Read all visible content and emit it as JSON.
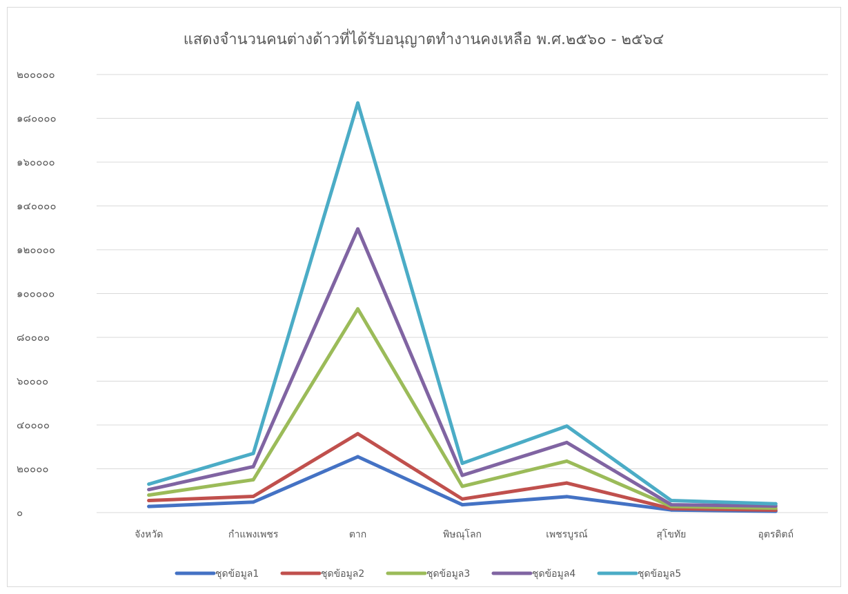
{
  "chart_data": {
    "type": "line",
    "title": "แสดงจำนวนคนต่างด้าวที่ได้รับอนุญาตทำงานคงเหลือ พ.ศ.๒๕๖๐ - ๒๕๖๔",
    "categories": [
      "จังหวัด",
      "กำแพงเพชร",
      "ตาก",
      "พิษณุโลก",
      "เพชรบูรณ์",
      "สุโขทัย",
      "อุตรดิตถ์"
    ],
    "ylim": [
      0,
      200000
    ],
    "yticks": [
      0,
      20000,
      40000,
      60000,
      80000,
      100000,
      120000,
      140000,
      160000,
      180000,
      200000
    ],
    "ytick_labels": [
      "๐",
      "๒๐๐๐๐",
      "๔๐๐๐๐",
      "๖๐๐๐๐",
      "๘๐๐๐๐",
      "๑๐๐๐๐๐",
      "๑๒๐๐๐๐",
      "๑๔๐๐๐๐",
      "๑๖๐๐๐๐",
      "๑๘๐๐๐๐",
      "๒๐๐๐๐๐"
    ],
    "grid": true,
    "legend_position": "bottom",
    "series": [
      {
        "name": "ชุดข้อมูล1",
        "color": "#4472c4",
        "values": [
          2800,
          4800,
          25500,
          3600,
          7300,
          1200,
          600
        ]
      },
      {
        "name": "ชุดข้อมูล2",
        "color": "#c0504d",
        "values": [
          5500,
          7400,
          36000,
          6200,
          13500,
          1800,
          1100
        ]
      },
      {
        "name": "ชุดข้อมูล3",
        "color": "#9bbb59",
        "values": [
          8000,
          15000,
          93000,
          12000,
          23500,
          2800,
          2000
        ]
      },
      {
        "name": "ชุดข้อมูล4",
        "color": "#8064a2",
        "values": [
          10500,
          21000,
          129500,
          17000,
          32000,
          3600,
          3000
        ]
      },
      {
        "name": "ชุดข้อมูล5",
        "color": "#4bacc6",
        "values": [
          13000,
          27000,
          187000,
          22500,
          39500,
          5500,
          4000
        ]
      }
    ]
  }
}
